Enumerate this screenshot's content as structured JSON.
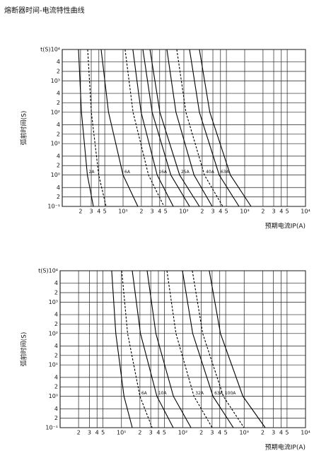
{
  "title": "熔断器时间-电流特性曲线",
  "chart_data": [
    {
      "type": "line",
      "xlabel": "预期电流IP(A)",
      "ylabel": "弧前时间(S)",
      "xscale": "log",
      "yscale": "log",
      "grid": true,
      "xlim": [
        1,
        10000
      ],
      "ylim": [
        0.1,
        10000
      ],
      "xticks": [
        2,
        3,
        4,
        5,
        {
          "value": 10,
          "label": "10¹"
        },
        {
          "value": 20,
          "label": "2"
        },
        {
          "value": 30,
          "label": "3"
        },
        {
          "value": 40,
          "label": "4"
        },
        {
          "value": 50,
          "label": "5"
        },
        {
          "value": 100,
          "label": "10²"
        },
        {
          "value": 200,
          "label": "2"
        },
        {
          "value": 300,
          "label": "3"
        },
        {
          "value": 400,
          "label": "4"
        },
        {
          "value": 500,
          "label": "5"
        },
        {
          "value": 1000,
          "label": "10³"
        },
        {
          "value": 2000,
          "label": "2"
        },
        {
          "value": 3000,
          "label": "3"
        },
        {
          "value": 4000,
          "label": "4"
        },
        {
          "value": 5000,
          "label": "5"
        },
        {
          "value": 10000,
          "label": "10⁴"
        }
      ],
      "yticks": [
        {
          "value": 0.1,
          "label": "10⁻¹"
        },
        {
          "value": 0.2,
          "label": "2"
        },
        {
          "value": 0.4,
          "label": "4"
        },
        {
          "value": 1,
          "label": "10⁰"
        },
        2,
        4,
        {
          "value": 10,
          "label": "10¹"
        },
        {
          "value": 20,
          "label": "2"
        },
        {
          "value": 40,
          "label": "4"
        },
        {
          "value": 100,
          "label": "10²"
        },
        {
          "value": 200,
          "label": "2"
        },
        {
          "value": 400,
          "label": "4"
        },
        {
          "value": 1000,
          "label": "10³"
        },
        {
          "value": 2000,
          "label": "2"
        },
        {
          "value": 4000,
          "label": "4"
        },
        {
          "value": 10000,
          "label": "t(S)10⁴"
        }
      ],
      "series": [
        {
          "name": "2A",
          "color": "#000000",
          "linestyle": "solid",
          "x": [
            1.85,
            2.07,
            2.59,
            3.25
          ],
          "values": [
            10000,
            100,
            1,
            0.1
          ]
        },
        {
          "color": "#000000",
          "linestyle": "dashed",
          "x": [
            2.62,
            3.01,
            3.98,
            5.26
          ],
          "values": [
            10000,
            100,
            1,
            0.1
          ]
        },
        {
          "name": "6A",
          "color": "#000000",
          "linestyle": "solid",
          "x": [
            4.36,
            5.77,
            10.0,
            17.5
          ],
          "values": [
            10000,
            100,
            1,
            0.1
          ]
        },
        {
          "color": "#000000",
          "linestyle": "dashed",
          "x": [
            10.8,
            14.6,
            26.2,
            47.2
          ],
          "values": [
            10000,
            100,
            1,
            0.1
          ]
        },
        {
          "name": "16A",
          "color": "#000000",
          "linestyle": "solid",
          "x": [
            14.5,
            19.8,
            36.4,
            67
          ],
          "values": [
            10000,
            100,
            1,
            0.1
          ]
        },
        {
          "color": "#000000",
          "linestyle": "solid",
          "x": [
            21.2,
            30.1,
            61.1,
            124
          ],
          "values": [
            10000,
            100,
            1,
            0.1
          ]
        },
        {
          "name": "25A",
          "color": "#000000",
          "linestyle": "solid",
          "x": [
            27.7,
            40.3,
            85.1,
            180
          ],
          "values": [
            10000,
            100,
            1,
            0.1
          ]
        },
        {
          "color": "#000000",
          "linestyle": "solid",
          "x": [
            52.6,
            74.1,
            147,
            292
          ],
          "values": [
            10000,
            100,
            1,
            0.1
          ]
        },
        {
          "name": "40A",
          "color": "#000000",
          "linestyle": "dashed",
          "x": [
            76.5,
            108,
            218,
            436
          ],
          "values": [
            10000,
            100,
            1,
            0.1
          ]
        },
        {
          "name": "63A",
          "color": "#000000",
          "linestyle": "solid",
          "x": [
            124,
            180,
            381,
            807
          ],
          "values": [
            10000,
            100,
            1,
            0.1
          ]
        },
        {
          "color": "#000000",
          "linestyle": "solid",
          "x": [
            180,
            267,
            582,
            1273
          ],
          "values": [
            10000,
            100,
            1,
            0.1
          ]
        }
      ]
    },
    {
      "type": "line",
      "xlabel": "预期电流IP(A)",
      "ylabel": "弧前时间(S)",
      "xscale": "log",
      "yscale": "log",
      "grid": true,
      "xlim": [
        1,
        10000
      ],
      "ylim": [
        0.1,
        10000
      ],
      "xticks": [
        2,
        3,
        4,
        5,
        {
          "value": 10,
          "label": "10¹"
        },
        {
          "value": 20,
          "label": "2"
        },
        {
          "value": 30,
          "label": "3"
        },
        {
          "value": 40,
          "label": "4"
        },
        {
          "value": 50,
          "label": "5"
        },
        {
          "value": 100,
          "label": "10²"
        },
        {
          "value": 200,
          "label": "2"
        },
        {
          "value": 300,
          "label": "3"
        },
        {
          "value": 400,
          "label": "4"
        },
        {
          "value": 500,
          "label": "5"
        },
        {
          "value": 1000,
          "label": "10³"
        },
        {
          "value": 2000,
          "label": "2"
        },
        {
          "value": 3000,
          "label": "3"
        },
        {
          "value": 4000,
          "label": "4"
        },
        {
          "value": 5000,
          "label": "5"
        },
        {
          "value": 10000,
          "label": "10⁴"
        }
      ],
      "yticks": [
        {
          "value": 0.1,
          "label": "10⁻¹"
        },
        {
          "value": 0.2,
          "label": "2"
        },
        {
          "value": 0.4,
          "label": "4"
        },
        {
          "value": 1,
          "label": "10⁰"
        },
        2,
        4,
        {
          "value": 10,
          "label": "10¹"
        },
        {
          "value": 20,
          "label": "2"
        },
        {
          "value": 40,
          "label": "4"
        },
        {
          "value": 100,
          "label": "10²"
        },
        {
          "value": 200,
          "label": "2"
        },
        {
          "value": 400,
          "label": "4"
        },
        {
          "value": 1000,
          "label": "10³"
        },
        {
          "value": 2000,
          "label": "2"
        },
        {
          "value": 4000,
          "label": "4"
        },
        {
          "value": 10000,
          "label": "t(S)10⁴"
        }
      ],
      "series": [
        {
          "color": "#000000",
          "linestyle": "solid",
          "x": [
            6.93,
            8.09,
            11.0,
            15.0
          ],
          "values": [
            10000,
            100,
            1,
            0.1
          ]
        },
        {
          "name": "6A",
          "color": "#000000",
          "linestyle": "dashed",
          "x": [
            10.1,
            12.6,
            20.0,
            31.6
          ],
          "values": [
            10000,
            100,
            1,
            0.1
          ]
        },
        {
          "name": "10A",
          "color": "#000000",
          "linestyle": "solid",
          "x": [
            15.0,
            20.4,
            37.8,
            69.8
          ],
          "values": [
            10000,
            100,
            1,
            0.1
          ]
        },
        {
          "color": "#000000",
          "linestyle": "solid",
          "x": [
            26.2,
            36.4,
            70.3,
            136
          ],
          "values": [
            10000,
            100,
            1,
            0.1
          ]
        },
        {
          "name": "32A",
          "color": "#000000",
          "linestyle": "dashed",
          "x": [
            55.1,
            77.3,
            152,
            301
          ],
          "values": [
            10000,
            100,
            1,
            0.1
          ]
        },
        {
          "name": "63A",
          "color": "#000000",
          "linestyle": "solid",
          "x": [
            98.6,
            145,
            310,
            667
          ],
          "values": [
            10000,
            100,
            1,
            0.1
          ]
        },
        {
          "name": "100A",
          "color": "#000000",
          "linestyle": "dashed",
          "x": [
            143,
            211,
            458,
            993
          ],
          "values": [
            10000,
            100,
            1,
            0.1
          ]
        },
        {
          "color": "#000000",
          "linestyle": "solid",
          "x": [
            270,
            411,
            953,
            2203
          ],
          "values": [
            10000,
            100,
            1,
            0.1
          ]
        }
      ]
    }
  ]
}
